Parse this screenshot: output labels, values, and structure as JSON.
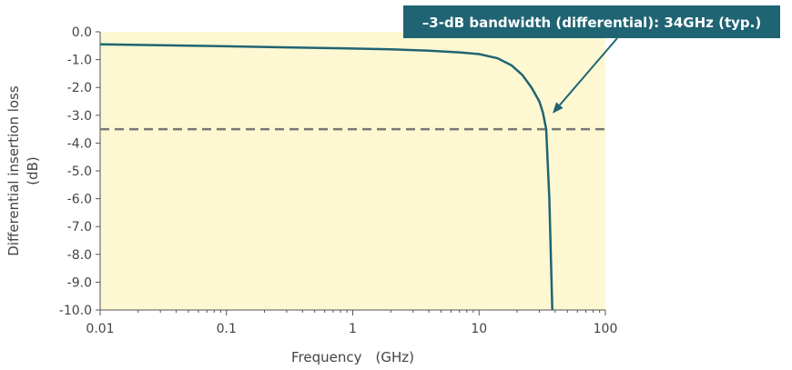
{
  "chart_data": {
    "type": "line",
    "x_scale": "log",
    "xlabel": "Frequency　(GHz)",
    "ylabel_lines": [
      "Differential insertion loss",
      "(dB)"
    ],
    "xlim": [
      0.01,
      100
    ],
    "ylim": [
      -10.0,
      0.0
    ],
    "x_ticks": [
      0.01,
      0.1,
      1,
      10,
      100
    ],
    "x_tick_labels": [
      "0.01",
      "0.1",
      "1",
      "10",
      "100"
    ],
    "y_ticks": [
      0,
      -1,
      -2,
      -3,
      -4,
      -5,
      -6,
      -7,
      -8,
      -9,
      -10
    ],
    "y_tick_labels": [
      "0.0",
      "-1.0",
      "-2.0",
      "-3.0",
      "-4.0",
      "-5.0",
      "-6.0",
      "-7.0",
      "-8.0",
      "-9.0",
      "-10.0"
    ],
    "grid": false,
    "series": [
      {
        "x": [
          0.01,
          0.03,
          0.1,
          0.3,
          1,
          2,
          4,
          7,
          10,
          14,
          18,
          22,
          26,
          30,
          32,
          34,
          36,
          38
        ],
        "y": [
          -0.45,
          -0.48,
          -0.52,
          -0.56,
          -0.6,
          -0.63,
          -0.68,
          -0.74,
          -0.8,
          -0.95,
          -1.2,
          -1.55,
          -2.0,
          -2.5,
          -2.9,
          -3.5,
          -6.0,
          -10.0
        ]
      }
    ],
    "reference_line": {
      "y": -3.5,
      "style": "dashed"
    },
    "annotation": {
      "text": "–3-dB bandwidth (differential): 34GHz (typ.)",
      "target": {
        "x": 34,
        "y": -2.9
      }
    },
    "colors": {
      "plot_background": "#fdf8d2",
      "line": "#1f6473",
      "reference_line": "#777777",
      "callout_background": "#1f6473",
      "callout_text": "#ffffff"
    }
  }
}
